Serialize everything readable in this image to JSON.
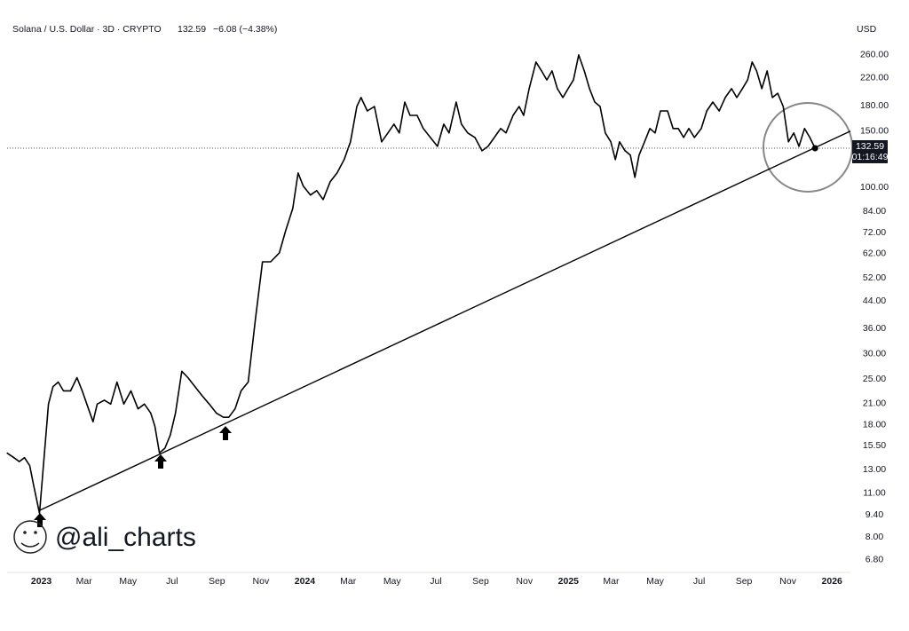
{
  "chart_data": {
    "type": "line",
    "title": "Solana / U.S. Dollar · 3D · CRYPTO",
    "change": "−6.08 (−4.38%)",
    "currency": "USD",
    "countdown": "01:16:49",
    "watermark": "@ali_charts",
    "log_y": true,
    "grid": false,
    "xlim": [
      2022.87,
      2026.07
    ],
    "ylim": [
      6.2,
      340
    ],
    "xticks": [
      {
        "value": 2023,
        "label": "2023"
      },
      {
        "value": 2023.162,
        "label": "Mar"
      },
      {
        "value": 2023.329,
        "label": "May"
      },
      {
        "value": 2023.496,
        "label": "Jul"
      },
      {
        "value": 2023.666,
        "label": "Sep"
      },
      {
        "value": 2023.833,
        "label": "Nov"
      },
      {
        "value": 2024,
        "label": "2024"
      },
      {
        "value": 2024.164,
        "label": "Mar"
      },
      {
        "value": 2024.331,
        "label": "May"
      },
      {
        "value": 2024.497,
        "label": "Jul"
      },
      {
        "value": 2024.667,
        "label": "Sep"
      },
      {
        "value": 2024.833,
        "label": "Nov"
      },
      {
        "value": 2025,
        "label": "2025"
      },
      {
        "value": 2025.162,
        "label": "Mar"
      },
      {
        "value": 2025.329,
        "label": "May"
      },
      {
        "value": 2025.496,
        "label": "Jul"
      },
      {
        "value": 2025.666,
        "label": "Sep"
      },
      {
        "value": 2025.833,
        "label": "Nov"
      },
      {
        "value": 2026,
        "label": "2026"
      }
    ],
    "yticks": [
      {
        "value": 260,
        "label": "260.00"
      },
      {
        "value": 220,
        "label": "220.00"
      },
      {
        "value": 180,
        "label": "180.00"
      },
      {
        "value": 150,
        "label": "150.00"
      },
      {
        "value": 100,
        "label": "100.00"
      },
      {
        "value": 84,
        "label": "84.00"
      },
      {
        "value": 72,
        "label": "72.00"
      },
      {
        "value": 62,
        "label": "62.00"
      },
      {
        "value": 52,
        "label": "52.00"
      },
      {
        "value": 44,
        "label": "44.00"
      },
      {
        "value": 36,
        "label": "36.00"
      },
      {
        "value": 30,
        "label": "30.00"
      },
      {
        "value": 25,
        "label": "25.00"
      },
      {
        "value": 21,
        "label": "21.00"
      },
      {
        "value": 18,
        "label": "18.00"
      },
      {
        "value": 15.5,
        "label": "15.50"
      },
      {
        "value": 13,
        "label": "13.00"
      },
      {
        "value": 11,
        "label": "11.00"
      },
      {
        "value": 9.4,
        "label": "9.40"
      },
      {
        "value": 8,
        "label": "8.00"
      },
      {
        "value": 6.8,
        "label": "6.80"
      }
    ],
    "x": [
      2022.869,
      2022.896,
      2022.916,
      2022.936,
      2022.956,
      2022.97,
      2022.993,
      2023.027,
      2023.044,
      2023.064,
      2023.084,
      2023.111,
      2023.135,
      2023.155,
      2023.179,
      2023.196,
      2023.212,
      2023.239,
      2023.263,
      2023.287,
      2023.313,
      2023.34,
      2023.367,
      2023.391,
      2023.415,
      2023.431,
      2023.448,
      2023.469,
      2023.489,
      2023.509,
      2023.533,
      2023.556,
      2023.583,
      2023.61,
      2023.637,
      2023.664,
      2023.691,
      2023.711,
      2023.735,
      2023.758,
      2023.785,
      2023.812,
      2023.839,
      2023.87,
      2023.903,
      2023.927,
      2023.954,
      2023.974,
      2023.994,
      2024.021,
      2024.045,
      2024.069,
      2024.096,
      2024.122,
      2024.149,
      2024.173,
      2024.197,
      2024.213,
      2024.237,
      2024.264,
      2024.291,
      2024.315,
      2024.338,
      2024.358,
      2024.379,
      2024.399,
      2024.426,
      2024.449,
      2024.476,
      2024.503,
      2024.527,
      2024.547,
      2024.574,
      2024.594,
      2024.618,
      2024.645,
      2024.672,
      2024.695,
      2024.719,
      2024.743,
      2024.763,
      2024.79,
      2024.813,
      2024.83,
      2024.851,
      2024.877,
      2024.898,
      2024.918,
      2024.938,
      2024.958,
      2024.979,
      2024.999,
      2025.019,
      2025.039,
      2025.06,
      2025.08,
      2025.1,
      2025.12,
      2025.14,
      2025.161,
      2025.178,
      2025.194,
      2025.215,
      2025.235,
      2025.252,
      2025.268,
      2025.289,
      2025.309,
      2025.329,
      2025.349,
      2025.376,
      2025.397,
      2025.417,
      2025.437,
      2025.457,
      2025.478,
      2025.504,
      2025.525,
      2025.548,
      2025.572,
      2025.595,
      2025.619,
      2025.639,
      2025.66,
      2025.68,
      2025.697,
      2025.714,
      2025.734,
      2025.754,
      2025.774,
      2025.794,
      2025.815,
      2025.835,
      2025.855,
      2025.875,
      2025.896,
      2025.916,
      2025.936
    ],
    "series": [
      {
        "color": "#000000",
        "values": [
          14.7,
          14.2,
          13.8,
          14.2,
          13.4,
          11.7,
          9.5,
          20.9,
          23.7,
          24.5,
          23.0,
          23.0,
          25.3,
          23.0,
          20.2,
          18.4,
          20.9,
          21.5,
          20.9,
          24.5,
          20.9,
          23.0,
          20.2,
          20.9,
          19.6,
          17.8,
          14.7,
          15.2,
          16.7,
          19.6,
          26.5,
          25.3,
          23.7,
          22.2,
          20.9,
          19.6,
          19.0,
          19.0,
          20.2,
          23.0,
          24.5,
          38.5,
          58.4,
          58.4,
          62.3,
          73.1,
          85.8,
          110.9,
          100.8,
          94.5,
          97.6,
          91.5,
          104.1,
          110.9,
          122.1,
          138.8,
          179.2,
          191.1,
          173.5,
          179.2,
          138.8,
          148,
          157.7,
          148,
          185,
          168,
          168,
          152.8,
          143.3,
          134.4,
          157.7,
          148,
          185,
          157.7,
          148,
          143.3,
          130.1,
          134.4,
          143.3,
          152.8,
          148,
          168,
          179.2,
          168,
          203.8,
          247,
          231.6,
          217,
          231.6,
          203.8,
          191.1,
          203.8,
          217,
          260,
          231.6,
          203.8,
          185,
          179.2,
          148,
          138.8,
          122.1,
          138.8,
          130.1,
          126.1,
          107.4,
          126.1,
          138.8,
          152.8,
          148,
          173.5,
          173.5,
          152.8,
          152.8,
          143.3,
          152.8,
          143.3,
          152.8,
          173.5,
          185,
          173.5,
          191.1,
          203.8,
          191.1,
          203.8,
          217,
          247,
          231.6,
          203.8,
          231.6,
          191.1,
          197.1,
          179.2,
          138.8,
          148,
          134.4,
          152.8,
          143.3,
          132.59
        ]
      }
    ],
    "trendline": {
      "x": [
        2022.993,
        2026.07
      ],
      "y": [
        9.7,
        150
      ]
    }
  }
}
